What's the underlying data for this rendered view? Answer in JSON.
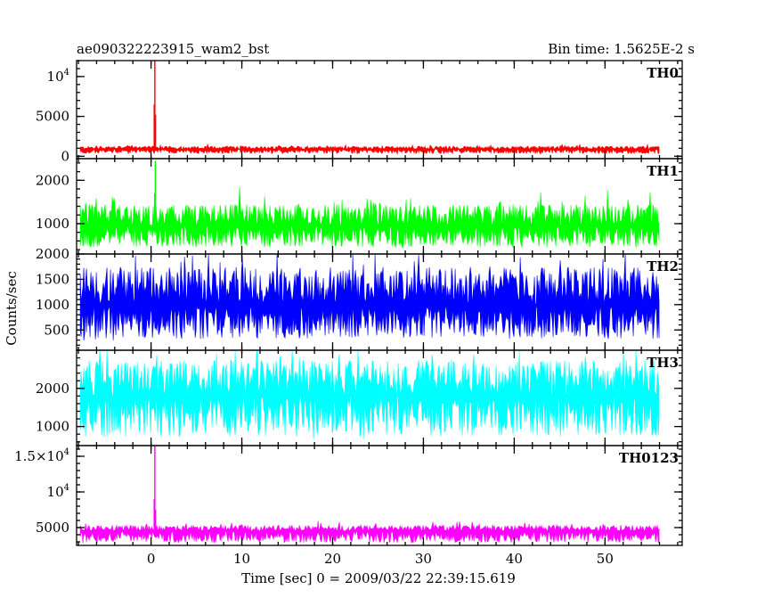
{
  "header": {
    "title": "ae090322223915_wam2_bst",
    "bin_time": "Bin time: 1.5625E-2 s"
  },
  "chart_data": {
    "type": "line",
    "xlabel": "Time [sec] 0 = 2009/03/22 22:39:15.619",
    "ylabel": "Counts/sec",
    "xlim": [
      -8.2,
      58.5
    ],
    "x_ticks": [
      0,
      10,
      20,
      30,
      40,
      50
    ],
    "x_tick_labels": [
      "0",
      "10",
      "20",
      "30",
      "40",
      "50"
    ],
    "x_start": -7.8,
    "x_end": 56.0,
    "bin": 0.015625,
    "panels": [
      {
        "name": "TH0",
        "color": "#ff0000",
        "ylim": [
          -300,
          12000
        ],
        "y_ticks": [
          0,
          5000,
          10000
        ],
        "y_tick_labels": [
          "0",
          "5000",
          "10^4"
        ],
        "baseline": 900,
        "noise": 650,
        "floor_limit": 250,
        "spike": {
          "x": 0.35,
          "peaks": [
            6500,
            12000,
            5200
          ]
        }
      },
      {
        "name": "TH1",
        "color": "#00ff00",
        "ylim": [
          300,
          2500
        ],
        "y_ticks": [
          1000,
          2000
        ],
        "y_tick_labels": [
          "1000",
          "2000"
        ],
        "baseline": 950,
        "noise": 900,
        "floor_limit": 400,
        "spike": {
          "x": 0.4,
          "peaks": [
            1700,
            2450
          ]
        }
      },
      {
        "name": "TH2",
        "color": "#0000ff",
        "ylim": [
          100,
          2000
        ],
        "y_ticks": [
          500,
          1000,
          1500,
          2000
        ],
        "y_tick_labels": [
          "500",
          "1000",
          "1500",
          "2000"
        ],
        "baseline": 1000,
        "noise": 1350,
        "floor_limit": 250,
        "spike": null
      },
      {
        "name": "TH3",
        "color": "#00ffff",
        "ylim": [
          500,
          3000
        ],
        "y_ticks": [
          1000,
          2000
        ],
        "y_tick_labels": [
          "1000",
          "2000"
        ],
        "baseline": 1800,
        "noise": 1700,
        "floor_limit": 620,
        "spike": null
      },
      {
        "name": "TH0123",
        "color": "#ff00ff",
        "ylim": [
          2500,
          16500
        ],
        "y_ticks": [
          5000,
          10000,
          15000
        ],
        "y_tick_labels": [
          "5000",
          "10^4",
          "1.5×10^4"
        ],
        "baseline": 4500,
        "noise": 1500,
        "floor_limit": 2700,
        "spike": {
          "x": 0.35,
          "peaks": [
            9000,
            16400,
            7500
          ]
        }
      }
    ]
  }
}
